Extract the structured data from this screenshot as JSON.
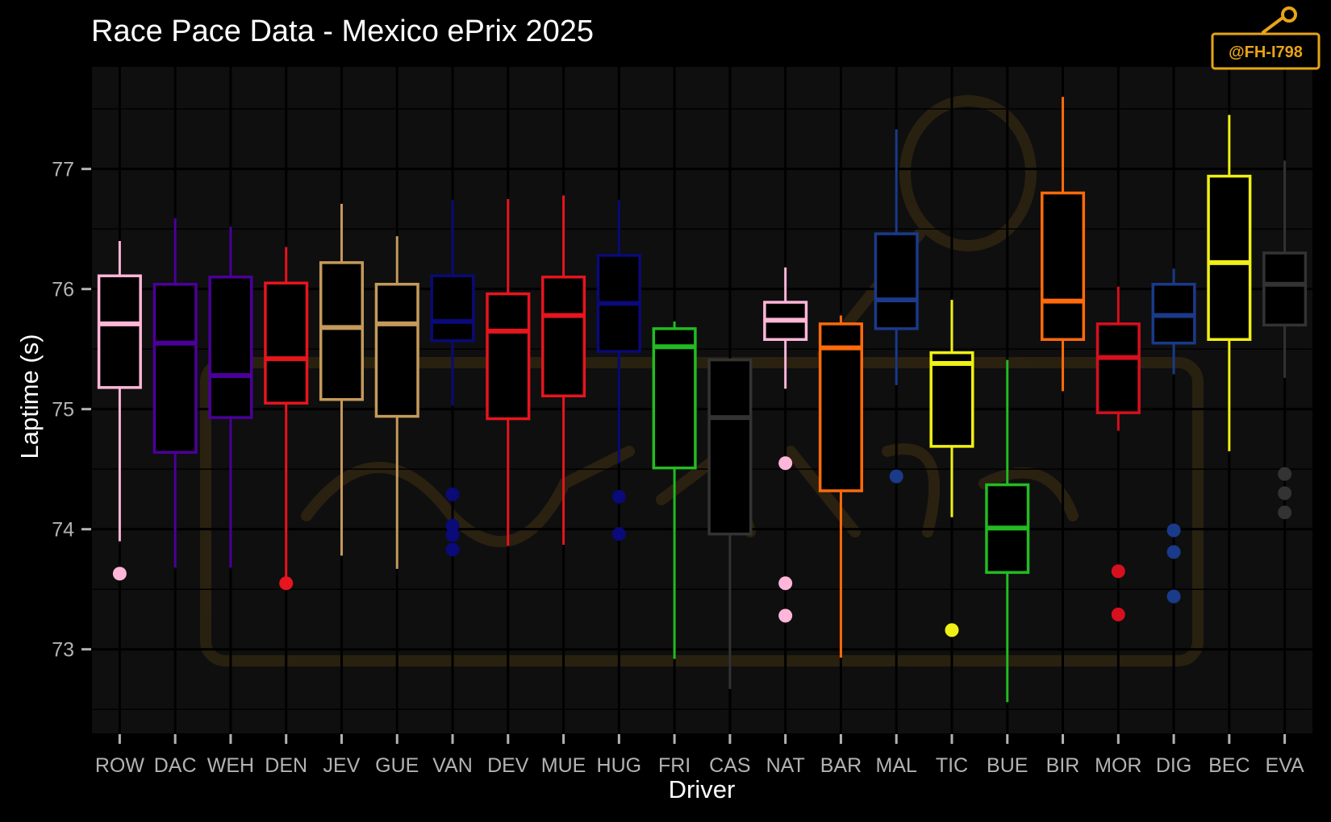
{
  "chart_data": {
    "type": "boxplot",
    "title": "Race Pace Data - Mexico ePrix 2025",
    "xlabel": "Driver",
    "ylabel": "Laptime (s)",
    "ylim": [
      72.3,
      77.85
    ],
    "yticks": [
      73,
      74,
      75,
      76,
      77
    ],
    "grid": true,
    "legend": "none",
    "background": "#000000",
    "panel_color": "#0f0f0f",
    "watermark": "@FH-I798",
    "watermark_color": "#e8a317",
    "drivers": [
      {
        "name": "ROW",
        "color": "#ffb6d9",
        "whisker_low": 73.9,
        "q1": 75.18,
        "median": 75.71,
        "q3": 76.11,
        "whisker_high": 76.4,
        "outliers": [
          73.63
        ]
      },
      {
        "name": "DAC",
        "color": "#4b0099",
        "whisker_low": 73.68,
        "q1": 74.64,
        "median": 75.55,
        "q3": 76.04,
        "whisker_high": 76.59,
        "outliers": []
      },
      {
        "name": "WEH",
        "color": "#4b0099",
        "whisker_low": 73.68,
        "q1": 74.93,
        "median": 75.28,
        "q3": 76.1,
        "whisker_high": 76.52,
        "outliers": []
      },
      {
        "name": "DEN",
        "color": "#e8141e",
        "whisker_low": 73.55,
        "q1": 75.05,
        "median": 75.42,
        "q3": 76.05,
        "whisker_high": 76.35,
        "outliers": [
          73.55
        ]
      },
      {
        "name": "JEV",
        "color": "#c49a5a",
        "whisker_low": 73.78,
        "q1": 75.08,
        "median": 75.68,
        "q3": 76.22,
        "whisker_high": 76.71,
        "outliers": []
      },
      {
        "name": "GUE",
        "color": "#c49a5a",
        "whisker_low": 73.67,
        "q1": 74.94,
        "median": 75.71,
        "q3": 76.04,
        "whisker_high": 76.44,
        "outliers": []
      },
      {
        "name": "VAN",
        "color": "#0a0a78",
        "whisker_low": 75.03,
        "q1": 75.57,
        "median": 75.73,
        "q3": 76.11,
        "whisker_high": 76.74,
        "outliers": [
          74.29,
          74.03,
          73.95,
          73.83
        ]
      },
      {
        "name": "DEV",
        "color": "#e8141e",
        "whisker_low": 73.86,
        "q1": 74.92,
        "median": 75.65,
        "q3": 75.96,
        "whisker_high": 76.75,
        "outliers": []
      },
      {
        "name": "MUE",
        "color": "#e8141e",
        "whisker_low": 73.87,
        "q1": 75.11,
        "median": 75.78,
        "q3": 76.1,
        "whisker_high": 76.78,
        "outliers": []
      },
      {
        "name": "HUG",
        "color": "#0a0a78",
        "whisker_low": 74.55,
        "q1": 75.48,
        "median": 75.88,
        "q3": 76.28,
        "whisker_high": 76.74,
        "outliers": [
          74.27,
          73.96
        ]
      },
      {
        "name": "FRI",
        "color": "#22bb22",
        "whisker_low": 72.92,
        "q1": 74.51,
        "median": 75.52,
        "q3": 75.67,
        "whisker_high": 75.73,
        "outliers": []
      },
      {
        "name": "CAS",
        "color": "#333333",
        "whisker_low": 72.67,
        "q1": 73.96,
        "median": 74.93,
        "q3": 75.41,
        "whisker_high": 75.41,
        "outliers": []
      },
      {
        "name": "NAT",
        "color": "#ffb6d9",
        "whisker_low": 75.17,
        "q1": 75.58,
        "median": 75.74,
        "q3": 75.89,
        "whisker_high": 76.18,
        "outliers": [
          74.55,
          73.55,
          73.28
        ]
      },
      {
        "name": "BAR",
        "color": "#ff6a0a",
        "whisker_low": 72.93,
        "q1": 74.32,
        "median": 75.51,
        "q3": 75.71,
        "whisker_high": 75.78,
        "outliers": []
      },
      {
        "name": "MAL",
        "color": "#1a3a8a",
        "whisker_low": 75.2,
        "q1": 75.67,
        "median": 75.91,
        "q3": 76.46,
        "whisker_high": 77.33,
        "outliers": [
          74.44
        ]
      },
      {
        "name": "TIC",
        "color": "#f0f014",
        "whisker_low": 74.1,
        "q1": 74.69,
        "median": 75.38,
        "q3": 75.47,
        "whisker_high": 75.91,
        "outliers": [
          73.16
        ]
      },
      {
        "name": "BUE",
        "color": "#22bb22",
        "whisker_low": 72.56,
        "q1": 73.64,
        "median": 74.01,
        "q3": 74.37,
        "whisker_high": 75.41,
        "outliers": []
      },
      {
        "name": "BIR",
        "color": "#ff6a0a",
        "whisker_low": 75.15,
        "q1": 75.58,
        "median": 75.9,
        "q3": 76.8,
        "whisker_high": 77.6,
        "outliers": []
      },
      {
        "name": "MOR",
        "color": "#d6101e",
        "whisker_low": 74.82,
        "q1": 74.97,
        "median": 75.43,
        "q3": 75.71,
        "whisker_high": 76.02,
        "outliers": [
          73.65,
          73.29
        ]
      },
      {
        "name": "DIG",
        "color": "#1a3a8a",
        "whisker_low": 75.29,
        "q1": 75.55,
        "median": 75.78,
        "q3": 76.04,
        "whisker_high": 76.17,
        "outliers": [
          73.99,
          73.81,
          73.44
        ]
      },
      {
        "name": "BEC",
        "color": "#f0f014",
        "whisker_low": 74.65,
        "q1": 75.58,
        "median": 76.22,
        "q3": 76.94,
        "whisker_high": 77.45,
        "outliers": []
      },
      {
        "name": "EVA",
        "color": "#333333",
        "whisker_low": 75.26,
        "q1": 75.7,
        "median": 76.04,
        "q3": 76.3,
        "whisker_high": 77.07,
        "outliers": [
          74.46,
          74.3,
          74.14
        ]
      }
    ]
  }
}
